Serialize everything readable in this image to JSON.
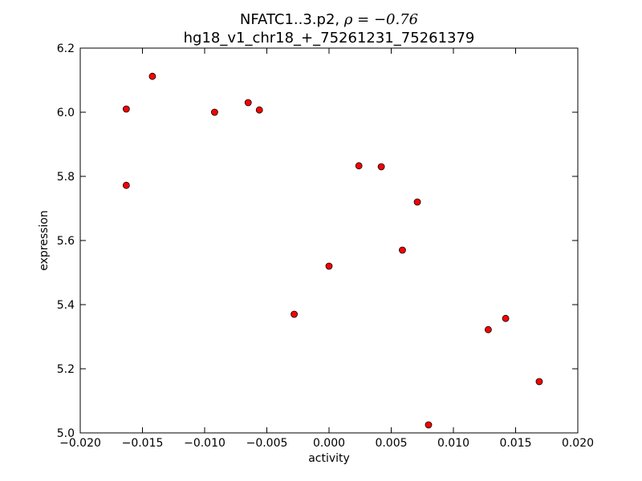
{
  "chart_data": {
    "type": "scatter",
    "title": "NFATC1..3.p2, ",
    "title_rho": "ρ = −0.76",
    "subtitle": "hg18_v1_chr18_+_75261231_75261379",
    "xlabel": "activity",
    "ylabel": "expression",
    "xlim": [
      -0.02,
      0.02
    ],
    "ylim": [
      5.0,
      6.2
    ],
    "xticks": [
      -0.02,
      -0.015,
      -0.01,
      -0.005,
      0.0,
      0.005,
      0.01,
      0.015,
      0.02
    ],
    "xtick_labels": [
      "−0.020",
      "−0.015",
      "−0.010",
      "−0.005",
      "0.000",
      "0.005",
      "0.010",
      "0.015",
      "0.020"
    ],
    "yticks": [
      5.0,
      5.2,
      5.4,
      5.6,
      5.8,
      6.0,
      6.2
    ],
    "ytick_labels": [
      "5.0",
      "5.2",
      "5.4",
      "5.6",
      "5.8",
      "6.0",
      "6.2"
    ],
    "grid": false,
    "marker_color": "#ff0000",
    "marker_edge": "#000000",
    "points": [
      {
        "x": -0.0163,
        "y": 6.01
      },
      {
        "x": -0.0142,
        "y": 6.112
      },
      {
        "x": -0.0163,
        "y": 5.772
      },
      {
        "x": -0.0092,
        "y": 6.0
      },
      {
        "x": -0.0065,
        "y": 6.03
      },
      {
        "x": -0.0056,
        "y": 6.007
      },
      {
        "x": -0.0028,
        "y": 5.37
      },
      {
        "x": 0.0,
        "y": 5.52
      },
      {
        "x": 0.0024,
        "y": 5.833
      },
      {
        "x": 0.0042,
        "y": 5.83
      },
      {
        "x": 0.0059,
        "y": 5.57
      },
      {
        "x": 0.0071,
        "y": 5.72
      },
      {
        "x": 0.008,
        "y": 5.025
      },
      {
        "x": 0.0128,
        "y": 5.322
      },
      {
        "x": 0.0142,
        "y": 5.357
      },
      {
        "x": 0.0169,
        "y": 5.16
      }
    ]
  }
}
